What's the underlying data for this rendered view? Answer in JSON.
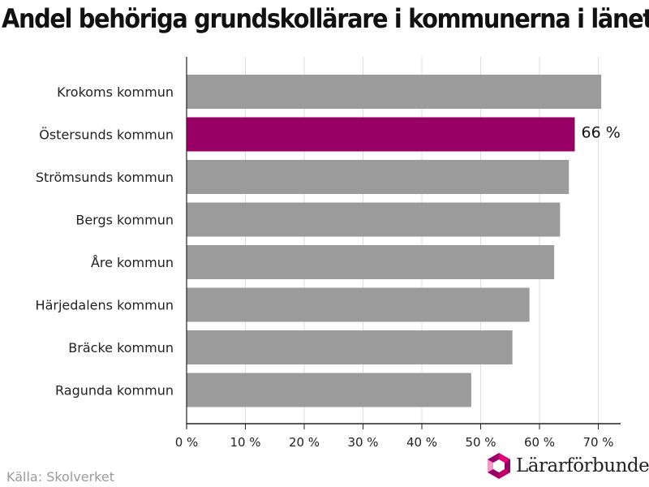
{
  "chart_data": {
    "type": "bar",
    "orientation": "horizontal",
    "title": "Andel behöriga grundskollärare i kommunerna i länet",
    "categories": [
      "Krokoms kommun",
      "Östersunds kommun",
      "Strömsunds kommun",
      "Bergs kommun",
      "Åre kommun",
      "Härjedalens kommun",
      "Bräcke kommun",
      "Ragunda kommun"
    ],
    "values": [
      70.5,
      66,
      65,
      63.5,
      62.5,
      58.3,
      55.4,
      48.4
    ],
    "highlight_index": 1,
    "data_labels": [
      {
        "index": 1,
        "text": "66 %"
      }
    ],
    "x_ticks": [
      "0 %",
      "10 %",
      "20 %",
      "30 %",
      "40 %",
      "50 %",
      "60 %",
      "70 %"
    ],
    "x_tick_values": [
      0,
      10,
      20,
      30,
      40,
      50,
      60,
      70
    ],
    "xlim": [
      0,
      74
    ],
    "xlabel": "",
    "ylabel": "",
    "grid": "vertical",
    "colors": {
      "bar": "#9b9b9b",
      "highlight": "#990066",
      "grid": "#dddddd",
      "axis": "#222222"
    }
  },
  "source": "Källa: Skolverket",
  "logo": {
    "text": "Lärarförbundet",
    "icon": "lararforbundet-logo-icon",
    "colors": [
      "#990066",
      "#e2007a",
      "#f39ac4"
    ]
  }
}
